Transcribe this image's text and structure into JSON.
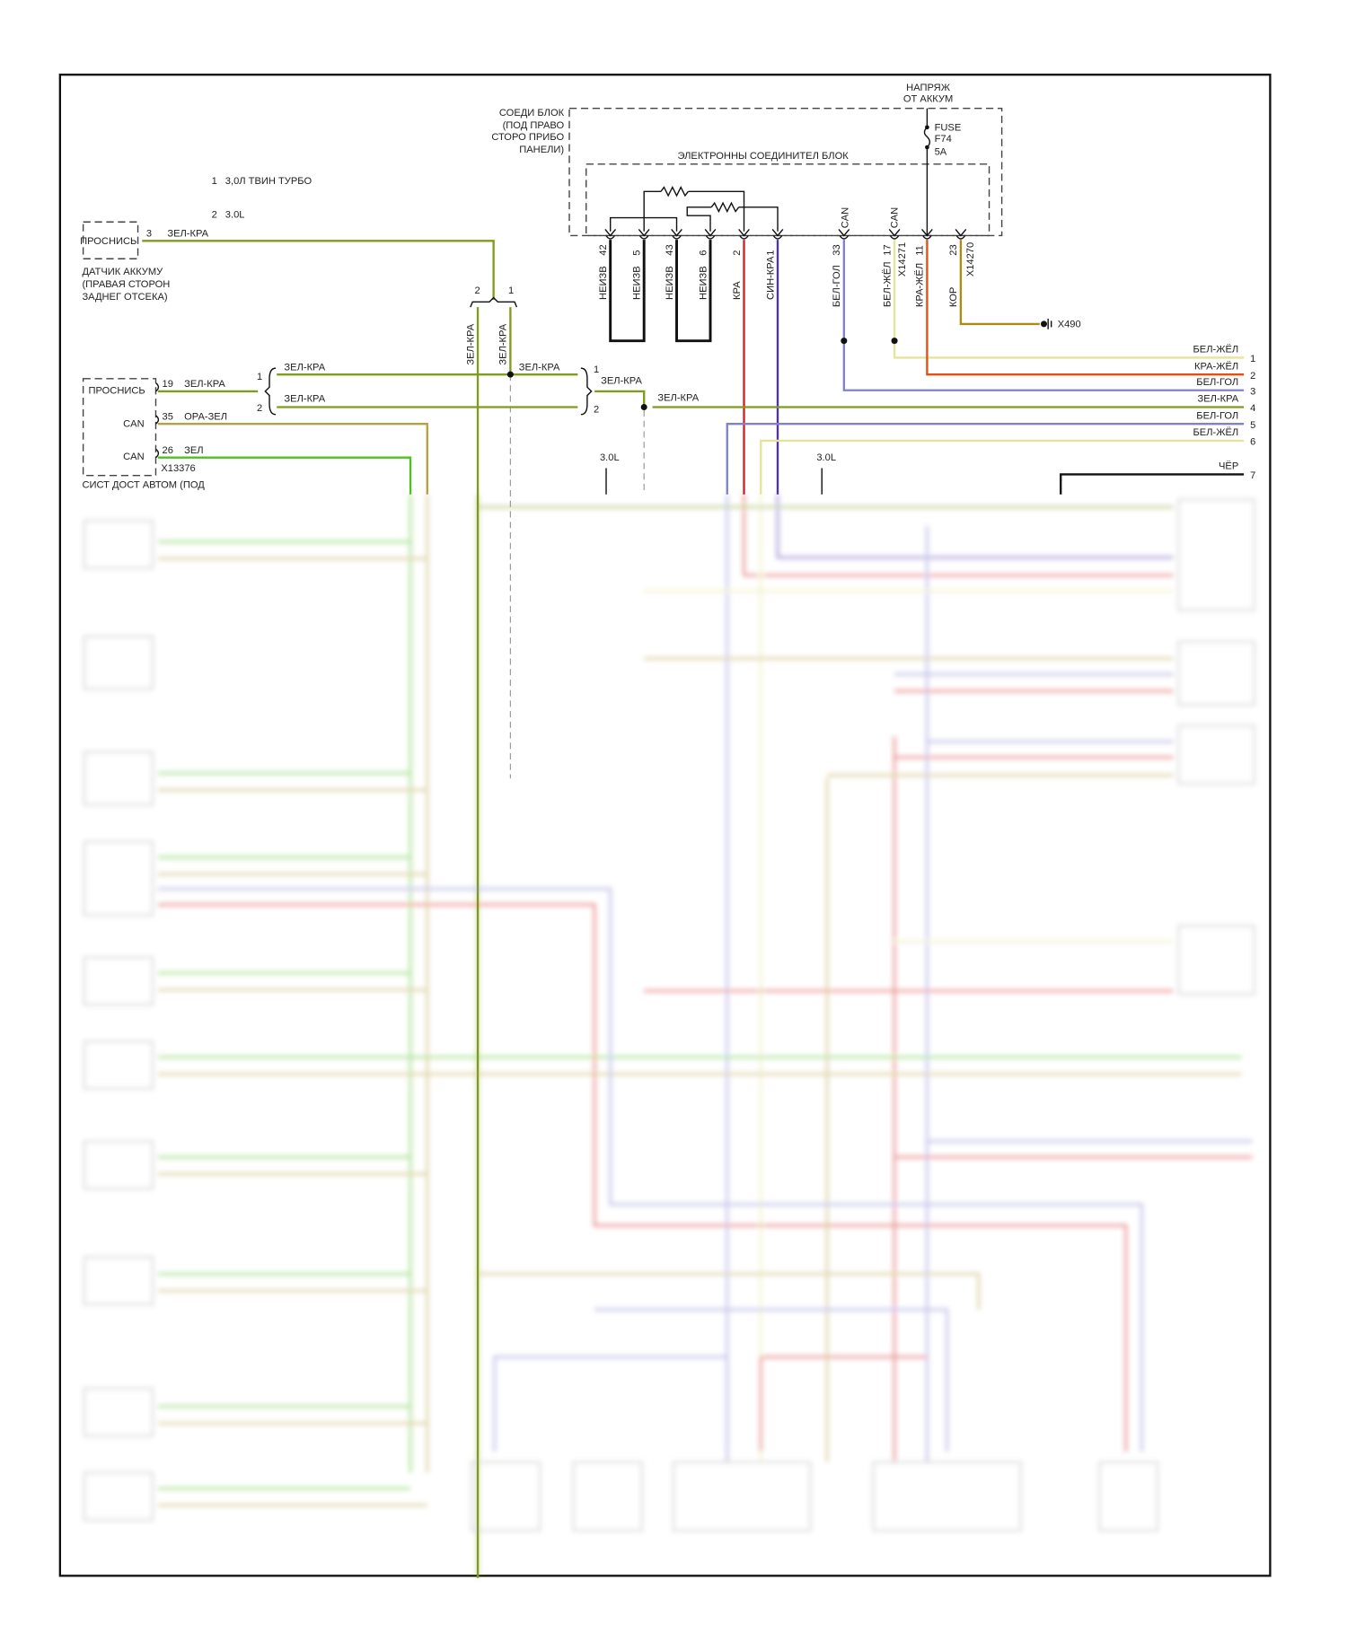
{
  "colors": {
    "zel_kra": "#7f9c1c",
    "ora_zel": "#b8a040",
    "zel": "#4fc020",
    "kra": "#d42020",
    "sin_kra": "#5030b0",
    "bel_gol": "#8080d0",
    "bel_zhel": "#e4e49a",
    "kra_zhel": "#e05010",
    "kor": "#b08a10",
    "cher": "#111111"
  },
  "top": {
    "voltage": [
      "НАПРЯЖ",
      "ОТ АККУМ"
    ],
    "junction_block": [
      "СОЕДИ БЛОК",
      "(ПОД ПРАВО",
      "СТОРО ПРИБО",
      "ПАНЕЛИ)"
    ],
    "electronic_block": "ЭЛЕКТРОННЫ СОЕДИНИТЕЛ БЛОК",
    "fuse": [
      "FUSE",
      "F74",
      "5A"
    ]
  },
  "notes": [
    {
      "n": "1",
      "text": "3,0Л ТВИН ТУРБО"
    },
    {
      "n": "2",
      "text": "3.0L"
    }
  ],
  "sensor": {
    "name": "ПРОСНИСЬ",
    "pin": "3",
    "wire": "ЗЕЛ-КРА",
    "caption": [
      "ДАТЧИК АККУМУ",
      "(ПРАВАЯ СТОРОН",
      "ЗАДНЕГ ОТСЕКА)"
    ]
  },
  "pins": [
    {
      "pin": "42",
      "wire": "НЕИЗВ"
    },
    {
      "pin": "5",
      "wire": "НЕИЗВ"
    },
    {
      "pin": "43",
      "wire": "НЕИЗВ"
    },
    {
      "pin": "6",
      "wire": "НЕИЗВ"
    },
    {
      "pin": "2",
      "wire": "КРА"
    },
    {
      "pin": "1",
      "wire": "СИН-КРА"
    },
    {
      "pin": "33",
      "wire": "БЕЛ-ГОЛ",
      "label": "CAN"
    },
    {
      "pin": "17",
      "wire": "БЕЛ-ЖЁЛ",
      "label": "CAN",
      "connector": "X14271"
    },
    {
      "pin": "11",
      "wire": "КРА-ЖЁЛ"
    },
    {
      "pin": "23",
      "wire": "КОР",
      "connector": "X14270"
    }
  ],
  "ground": "X490",
  "splice": {
    "left": "2",
    "right": "1",
    "wire_a": "ЗЕЛ-КРА",
    "wire_b": "ЗЕЛ-КРА"
  },
  "module": {
    "lines": [
      "ПРОСНИСЬ",
      "CAN",
      "CAN"
    ],
    "pins": [
      {
        "pin": "19",
        "wire": "ЗЕЛ-КРА"
      },
      {
        "pin": "35",
        "wire": "ОРА-ЗЕЛ"
      },
      {
        "pin": "26",
        "wire": "ЗЕЛ"
      }
    ],
    "connector": "X13376",
    "caption": "СИСТ ДОСТ АВТОМ (ПОД"
  },
  "mid": {
    "b1": "1",
    "b2": "2",
    "w1": "ЗЕЛ-КРА",
    "w2": "ЗЕЛ-КРА",
    "w3": "ЗЕЛ-КРА",
    "c1": "1",
    "c2": "2",
    "w4": "ЗЕЛ-КРА",
    "w5": "ЗЕЛ-КРА",
    "v1": "3.0L",
    "v2": "3.0L"
  },
  "right_outputs": [
    {
      "n": "1",
      "wire": "БЕЛ-ЖЁЛ"
    },
    {
      "n": "2",
      "wire": "КРА-ЖЁЛ"
    },
    {
      "n": "3",
      "wire": "БЕЛ-ГОЛ"
    },
    {
      "n": "4",
      "wire": "ЗЕЛ-КРА"
    },
    {
      "n": "5",
      "wire": "БЕЛ-ГОЛ"
    },
    {
      "n": "6",
      "wire": "БЕЛ-ЖЁЛ"
    },
    {
      "n": "7",
      "wire": "ЧЁР"
    }
  ]
}
